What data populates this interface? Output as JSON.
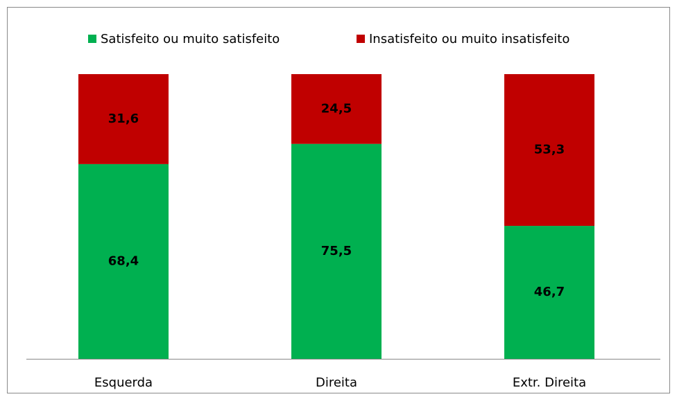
{
  "chart_data": {
    "type": "stacked_bar",
    "categories": [
      "Esquerda",
      "Direita",
      "Extr. Direita"
    ],
    "series": [
      {
        "name": "Satisfeito ou muito satisfeito",
        "color": "#00b050",
        "values": [
          68.4,
          75.5,
          46.7
        ],
        "value_labels": [
          "68,4",
          "75,5",
          "46,7"
        ]
      },
      {
        "name": "Insatisfeito ou muito insatisfeito",
        "color": "#c00000",
        "values": [
          31.6,
          24.5,
          53.3
        ],
        "value_labels": [
          "31,6",
          "24,5",
          "53,3"
        ]
      }
    ],
    "ylim": [
      0,
      100
    ],
    "legend": "top"
  }
}
